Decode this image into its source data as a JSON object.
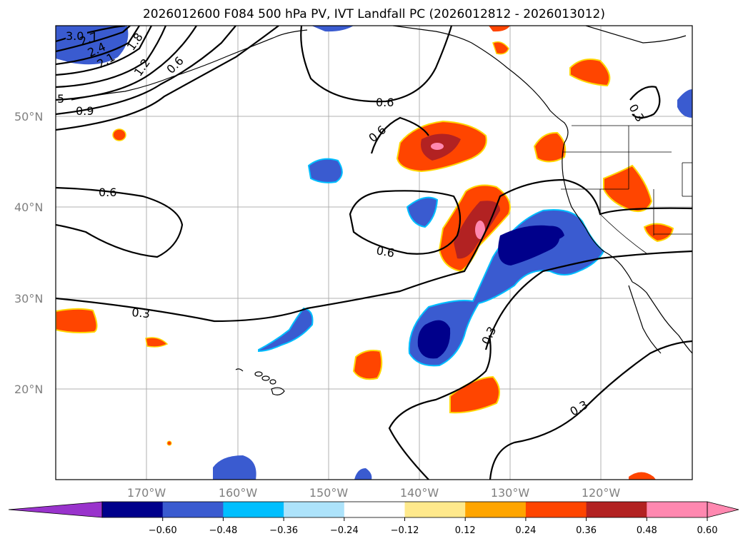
{
  "title": "2026012600 F084 500 hPa PV, IVT Landfall PC (2026012812 - 2026013012)",
  "map": {
    "lat_labels": [
      "50°N",
      "40°N",
      "30°N",
      "20°N"
    ],
    "lon_labels": [
      "170°W",
      "160°W",
      "150°W",
      "140°W",
      "130°W",
      "120°W"
    ],
    "contour_labels": [
      "3.0",
      "2.7",
      "2.4",
      "2.1",
      "1.8",
      "1.2",
      "0.6",
      "5",
      "0.9",
      "0.6",
      "0.6",
      "0.6",
      "0.6",
      "0.3",
      "0.3",
      "0.3",
      "0.3"
    ]
  },
  "colorbar": {
    "ticks": [
      "−0.60",
      "−0.48",
      "−0.36",
      "−0.24",
      "−0.12",
      "0.12",
      "0.24",
      "0.36",
      "0.48",
      "0.60"
    ],
    "colors": [
      "#9933cc",
      "#00008b",
      "#3a5bd0",
      "#00bfff",
      "#ade3fb",
      "#ffffff",
      "#ffe98c",
      "#ffa500",
      "#ff4500",
      "#b22222",
      "#ff88b0",
      "#ff88b0"
    ]
  }
}
